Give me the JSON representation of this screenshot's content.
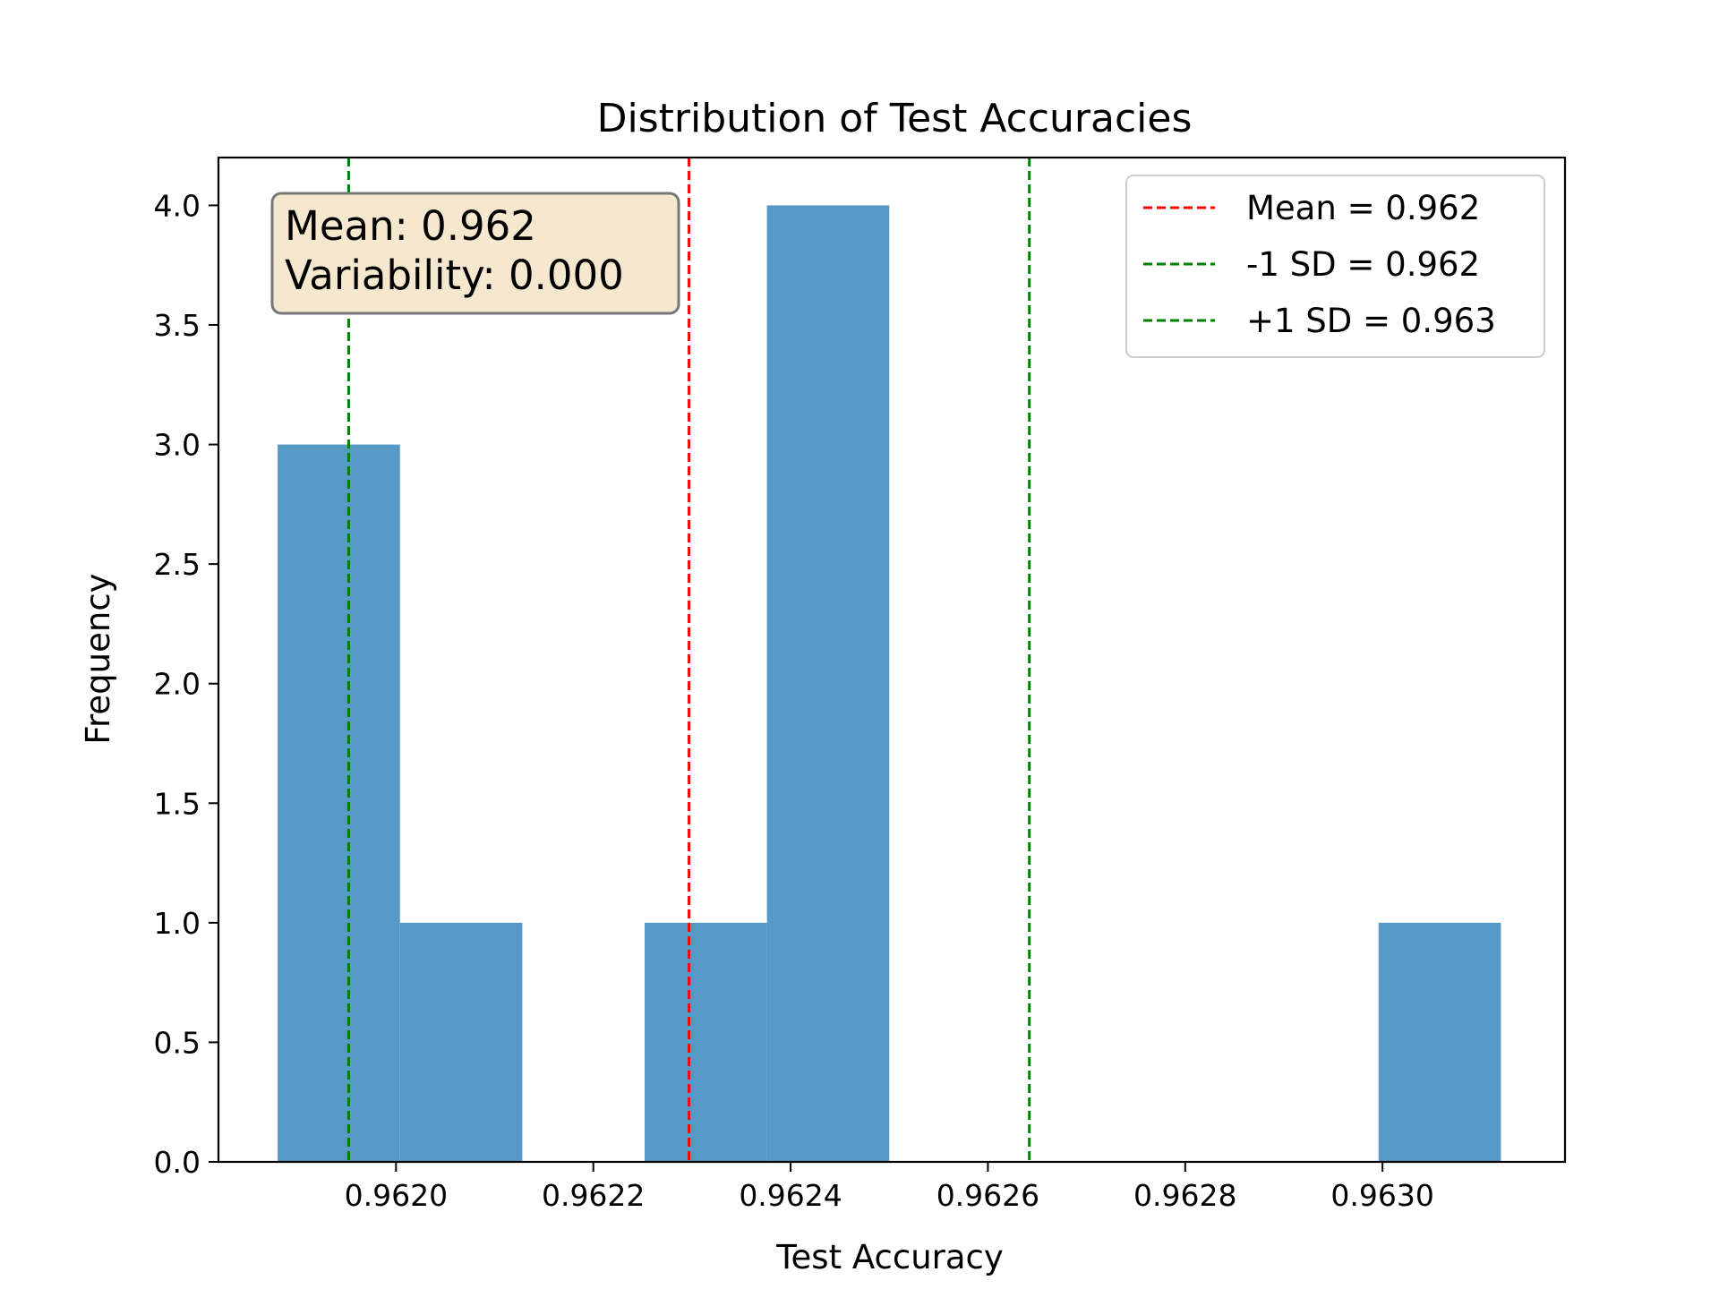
{
  "chart_data": {
    "type": "bar",
    "title": "Distribution of Test Accuracies",
    "xlabel": "Test Accuracy",
    "ylabel": "Frequency",
    "xlim": [
      0.96182,
      0.963185
    ],
    "ylim": [
      0,
      4.2
    ],
    "grid": false,
    "x_ticks": [
      "0.9620",
      "0.9622",
      "0.9624",
      "0.9626",
      "0.9628",
      "0.9630"
    ],
    "x_tick_values": [
      0.962,
      0.9622,
      0.9624,
      0.9626,
      0.9628,
      0.963
    ],
    "y_ticks": [
      "0.0",
      "0.5",
      "1.0",
      "1.5",
      "2.0",
      "2.5",
      "3.0",
      "3.5",
      "4.0"
    ],
    "y_tick_values": [
      0,
      0.5,
      1.0,
      1.5,
      2.0,
      2.5,
      3.0,
      3.5,
      4.0
    ],
    "histogram": {
      "color": "#5799c6",
      "bin_edges": [
        0.96188,
        0.962004,
        0.962128,
        0.962252,
        0.962376,
        0.9625,
        0.962624,
        0.962748,
        0.962872,
        0.962996,
        0.96312
      ],
      "counts": [
        3,
        1,
        0,
        1,
        4,
        0,
        0,
        0,
        0,
        1
      ]
    },
    "reference_lines": [
      {
        "label": "Mean = 0.962",
        "x": 0.962297,
        "color": "#ff0000"
      },
      {
        "label": "-1 SD = 0.962",
        "x": 0.961952,
        "color": "#008000"
      },
      {
        "label": "+1 SD = 0.963",
        "x": 0.962642,
        "color": "#008000"
      }
    ],
    "legend_position": "top-right",
    "stats_box": {
      "lines": [
        "Mean: 0.962",
        "Variability: 0.000"
      ],
      "background": "#f6e8cf",
      "border": "#777777"
    }
  }
}
